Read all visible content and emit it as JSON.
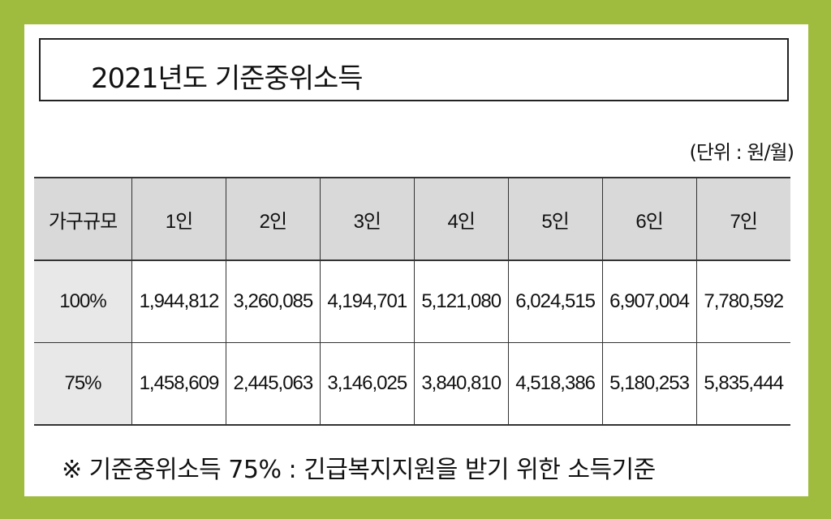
{
  "title": "2021년도 기준중위소득",
  "unit_note": "(단위 : 원/월)",
  "table": {
    "headers": [
      "가구규모",
      "1인",
      "2인",
      "3인",
      "4인",
      "5인",
      "6인",
      "7인"
    ],
    "rows": [
      {
        "label": "100%",
        "values": [
          "1,944,812",
          "3,260,085",
          "4,194,701",
          "5,121,080",
          "6,024,515",
          "6,907,004",
          "7,780,592"
        ]
      },
      {
        "label": "75%",
        "values": [
          "1,458,609",
          "2,445,063",
          "3,146,025",
          "3,840,810",
          "4,518,386",
          "5,180,253",
          "5,835,444"
        ]
      }
    ]
  },
  "footnote": "※ 기준중위소득 75% : 긴급복지지원을 받기 위한 소득기준",
  "colors": {
    "frame": "#9fbc3e",
    "header_bg": "#d9d9d9"
  }
}
